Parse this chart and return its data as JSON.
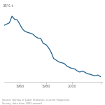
{
  "title": "35%+",
  "background_color": "#ffffff",
  "line_color": "#1f5f8b",
  "line_width": 0.9,
  "x_data": [
    1948,
    1950,
    1952,
    1954,
    1956,
    1958,
    1960,
    1962,
    1964,
    1966,
    1968,
    1970,
    1972,
    1974,
    1976,
    1978,
    1980,
    1982,
    1984,
    1986,
    1988,
    1990,
    1992,
    1994,
    1996,
    1998,
    2000,
    2002,
    2004,
    2006,
    2008,
    2010,
    2012,
    2014,
    2016,
    2018,
    2020,
    2022
  ],
  "y_data": [
    31.0,
    31.5,
    32.0,
    34.7,
    33.4,
    33.2,
    31.4,
    29.5,
    28.5,
    28.1,
    27.8,
    27.4,
    26.4,
    25.8,
    25.7,
    23.6,
    23.2,
    21.9,
    20.1,
    17.5,
    16.8,
    16.1,
    15.8,
    15.5,
    14.5,
    13.9,
    13.5,
    13.3,
    12.5,
    12.0,
    12.4,
    11.9,
    11.3,
    11.1,
    10.7,
    10.5,
    10.8,
    10.1
  ],
  "xticks": [
    1960,
    1980,
    2000,
    2022
  ],
  "xtick_labels": [
    "1960",
    "1980",
    "2000",
    ""
  ],
  "grid_color": "#e8e4d8",
  "grid_linewidth": 0.5,
  "footnote": "Source: Bureau of Labor Statistics, Current Population\nSurvey; data from 1983 onward",
  "ylim": [
    8,
    37
  ],
  "xlim": [
    1948,
    2023
  ],
  "title_fontsize": 4.0,
  "tick_fontsize": 3.5,
  "footnote_fontsize": 2.5
}
